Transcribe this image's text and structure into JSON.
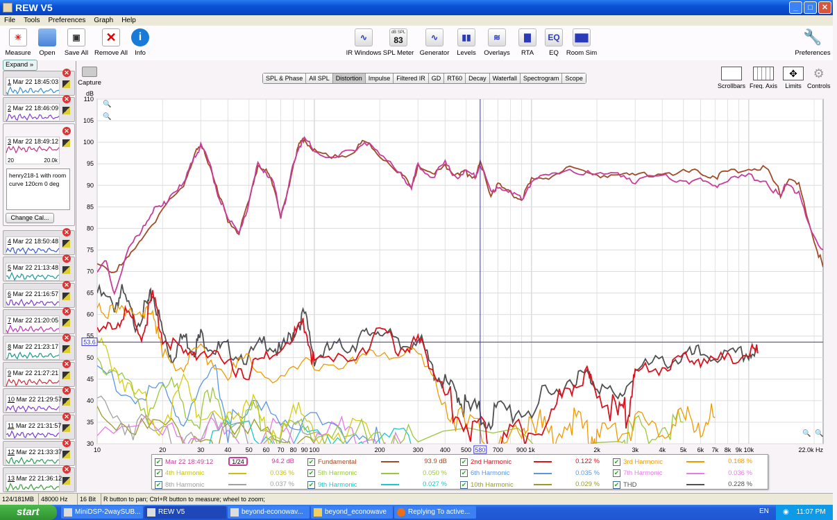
{
  "window": {
    "title": "REW V5",
    "min": "_",
    "max": "□",
    "close": "✕"
  },
  "menu": [
    "File",
    "Tools",
    "Preferences",
    "Graph",
    "Help"
  ],
  "toolbar_left": [
    {
      "label": "Measure",
      "icon": "measure-icon"
    },
    {
      "label": "Open",
      "icon": "folder-icon"
    },
    {
      "label": "Save All",
      "icon": "save-icon"
    },
    {
      "label": "Remove All",
      "icon": "remove-all-icon"
    },
    {
      "label": "Info",
      "icon": "info-icon"
    }
  ],
  "toolbar_center": [
    {
      "label": "IR Windows",
      "icon": "ir-windows-icon",
      "glyph": "∿"
    },
    {
      "label": "SPL Meter",
      "icon": "spl-meter-icon",
      "glyph": "83",
      "sub": "dB SPL"
    },
    {
      "label": "Generator",
      "icon": "generator-icon",
      "glyph": "∿"
    },
    {
      "label": "Levels",
      "icon": "levels-icon",
      "glyph": "▮▮"
    },
    {
      "label": "Overlays",
      "icon": "overlays-icon",
      "glyph": "≋"
    },
    {
      "label": "RTA",
      "icon": "rta-icon",
      "glyph": "▇"
    },
    {
      "label": "EQ",
      "icon": "eq-icon",
      "glyph": "EQ"
    },
    {
      "label": "Room Sim",
      "icon": "room-sim-icon",
      "glyph": "▇▇"
    }
  ],
  "preferences": "Preferences",
  "sidebar": {
    "expand": "Expand",
    "notes": "henry218-1 with room curve 120cm 0 deg",
    "change_cal": "Change Cal...",
    "axis_lo": "20",
    "axis_hi": "20.0k",
    "items": [
      {
        "n": "1",
        "date": "Mar 22 18:45:03",
        "color": "#3a8ed0"
      },
      {
        "n": "2",
        "date": "Mar 22 18:46:09",
        "color": "#8a3ad0"
      },
      {
        "n": "3",
        "date": "Mar 22 18:49:12",
        "color": "#c0308a"
      },
      {
        "n": "4",
        "date": "Mar 22 18:50:48",
        "color": "#3a5ad0"
      },
      {
        "n": "5",
        "date": "Mar 22 21:13:48",
        "color": "#1a9a9a"
      },
      {
        "n": "6",
        "date": "Mar 22 21:16:57",
        "color": "#7a3ad0"
      },
      {
        "n": "7",
        "date": "Mar 22 21:20:05",
        "color": "#c030c0"
      },
      {
        "n": "8",
        "date": "Mar 22 21:23:17",
        "color": "#1a9a8a"
      },
      {
        "n": "9",
        "date": "Mar 22 21:27:21",
        "color": "#d02a3a"
      },
      {
        "n": "10",
        "date": "Mar 22 21:29:57",
        "color": "#8a3ad0"
      },
      {
        "n": "11",
        "date": "Mar 22 21:31:57",
        "color": "#7a3ad0"
      },
      {
        "n": "12",
        "date": "Mar 22 21:33:37",
        "color": "#2aa05a"
      },
      {
        "n": "13",
        "date": "Mar 22 21:36:12",
        "color": "#3aa03a"
      }
    ]
  },
  "capture": "Capture",
  "tabs": [
    "SPL & Phase",
    "All SPL",
    "Distortion",
    "Impulse",
    "Filtered IR",
    "GD",
    "RT60",
    "Decay",
    "Waterfall",
    "Spectrogram",
    "Scope"
  ],
  "active_tab": "Distortion",
  "right_tools": [
    "Scrollbars",
    "Freq. Axis",
    "Limits",
    "Controls"
  ],
  "chart_data": {
    "type": "line",
    "ylabel": "dB",
    "xlabel": "Hz",
    "xscale": "log",
    "xlim": [
      10,
      22000
    ],
    "ylim": [
      30,
      110
    ],
    "yticks": [
      30,
      35,
      40,
      45,
      50,
      55,
      60,
      65,
      70,
      75,
      80,
      85,
      90,
      95,
      100,
      105,
      110
    ],
    "xticks": [
      {
        "v": 10,
        "t": "10"
      },
      {
        "v": 20,
        "t": "20"
      },
      {
        "v": 30,
        "t": "30"
      },
      {
        "v": 40,
        "t": "40"
      },
      {
        "v": 50,
        "t": "50"
      },
      {
        "v": 60,
        "t": "60"
      },
      {
        "v": 70,
        "t": "70"
      },
      {
        "v": 80,
        "t": "80"
      },
      {
        "v": 90,
        "t": "90"
      },
      {
        "v": 100,
        "t": "100"
      },
      {
        "v": 200,
        "t": "200"
      },
      {
        "v": 300,
        "t": "300"
      },
      {
        "v": 400,
        "t": "400"
      },
      {
        "v": 500,
        "t": "500"
      },
      {
        "v": 700,
        "t": "700"
      },
      {
        "v": 900,
        "t": "900"
      },
      {
        "v": 1000,
        "t": "1k"
      },
      {
        "v": 2000,
        "t": "2k"
      },
      {
        "v": 3000,
        "t": "3k"
      },
      {
        "v": 4000,
        "t": "4k"
      },
      {
        "v": 5000,
        "t": "5k"
      },
      {
        "v": 6000,
        "t": "6k"
      },
      {
        "v": 7000,
        "t": "7k"
      },
      {
        "v": 8000,
        "t": "8k"
      },
      {
        "v": 9000,
        "t": "9k"
      },
      {
        "v": 10000,
        "t": "10k"
      },
      {
        "v": 22000,
        "t": "22.0k Hz"
      }
    ],
    "cursor": {
      "x": 580,
      "x_label": "580",
      "y": 53.6,
      "y_label": "53.6"
    },
    "series": [
      {
        "name": "Mar 22 18:49:12",
        "color": "#c83c9a",
        "x": [
          10,
          11,
          12,
          14,
          16,
          18,
          20,
          22,
          25,
          28,
          30,
          33,
          36,
          40,
          45,
          50,
          55,
          60,
          65,
          70,
          75,
          80,
          85,
          90,
          100,
          120,
          150,
          170,
          200,
          250,
          280,
          300,
          350,
          400,
          450,
          500,
          550,
          580,
          650,
          700,
          800,
          900,
          1000,
          1200,
          1500,
          2000,
          2500,
          3000,
          4000,
          5000,
          6000,
          7000,
          8000,
          10000,
          12000,
          14000,
          15000,
          17000,
          19000,
          22000
        ],
        "y": [
          70,
          72,
          65,
          75,
          80,
          84,
          85,
          88,
          90,
          97,
          99,
          95,
          88,
          82,
          79,
          86,
          95,
          93,
          90,
          83,
          88,
          95,
          99,
          101,
          98,
          96,
          98,
          100,
          97,
          93,
          89,
          95,
          92,
          95,
          92,
          93,
          92,
          95,
          88,
          90,
          88,
          87,
          91,
          92,
          94,
          92,
          93,
          91,
          92,
          91,
          91,
          90,
          91,
          92,
          91,
          87,
          91,
          88,
          80,
          75
        ]
      },
      {
        "name": "Fundamental",
        "color": "#a04a28",
        "x": [
          10,
          12,
          14,
          16,
          20,
          25,
          28,
          30,
          33,
          36,
          40,
          45,
          50,
          55,
          60,
          65,
          70,
          75,
          80,
          85,
          90,
          100,
          120,
          150,
          170,
          200,
          250,
          280,
          300,
          350,
          400,
          450,
          500,
          550,
          580,
          650,
          700,
          800,
          900,
          1000,
          1200,
          1500,
          2000,
          2500,
          3000,
          4000,
          5000,
          6000,
          7000,
          8000,
          10000,
          12000,
          14000,
          15000,
          17000,
          20000,
          22000
        ],
        "y": [
          72,
          70,
          73,
          78,
          84,
          90,
          97,
          99,
          95,
          88,
          82,
          79,
          86,
          95,
          93,
          90,
          83,
          88,
          95,
          99,
          101,
          98,
          96,
          98,
          100,
          97,
          93,
          89,
          95,
          92,
          95,
          92,
          93,
          92,
          95,
          88,
          90,
          88,
          87,
          91,
          92,
          94,
          92,
          93,
          92,
          93,
          93,
          93,
          92,
          93,
          94,
          94,
          88,
          91,
          90,
          77,
          71
        ]
      },
      {
        "name": "2nd Harmonic",
        "color": "#d8141e",
        "x": [
          10,
          12,
          14,
          16,
          18,
          20,
          25,
          30,
          40,
          50,
          60,
          80,
          90,
          100,
          150,
          200,
          250,
          300,
          350,
          400,
          500,
          600,
          700,
          900,
          1200,
          1500,
          1800,
          2000,
          2500,
          2800,
          3000,
          4000,
          5000,
          6000,
          8000,
          10000,
          11000
        ],
        "y": [
          55,
          58,
          60,
          55,
          64,
          55,
          50,
          52,
          48,
          47,
          50,
          55,
          58,
          48,
          50,
          56,
          52,
          54,
          48,
          41,
          35,
          32,
          30,
          33,
          36,
          43,
          46,
          42,
          36,
          38,
          46,
          48,
          49,
          50,
          49,
          51,
          51
        ]
      },
      {
        "name": "3rd Harmonic",
        "color": "#f09a00",
        "x": [
          10,
          12,
          14,
          16,
          18,
          20,
          25,
          30,
          40,
          50,
          70,
          100,
          150,
          200,
          300,
          400,
          500,
          700,
          900,
          1000,
          1200,
          1500,
          1800,
          2000,
          2500,
          3000,
          4000,
          5000,
          6000,
          7000
        ],
        "y": [
          63,
          60,
          62,
          58,
          62,
          50,
          48,
          52,
          46,
          50,
          45,
          49,
          48,
          52,
          50,
          40,
          33,
          32,
          31,
          38,
          31,
          35,
          33,
          31,
          33,
          34,
          34,
          35,
          35,
          36
        ]
      },
      {
        "name": "4th Harmonic",
        "color": "#d4cc10",
        "x": [
          10,
          12,
          15,
          20,
          25,
          30,
          40,
          50,
          60,
          80,
          100,
          150,
          200
        ],
        "y": [
          54,
          48,
          40,
          35,
          45,
          38,
          35,
          41,
          32,
          37,
          34,
          32,
          30
        ]
      },
      {
        "name": "5th Harmonic",
        "color": "#9ac83a",
        "x": [
          10,
          13,
          17,
          22,
          28,
          35,
          45,
          55,
          70,
          90,
          120,
          200,
          300,
          2500,
          3000,
          4000,
          5000
        ],
        "y": [
          50,
          45,
          38,
          44,
          36,
          40,
          33,
          37,
          31,
          35,
          31,
          33,
          30,
          31,
          33,
          34,
          35
        ]
      },
      {
        "name": "6th Harmonic",
        "color": "#5a96e8",
        "x": [
          10,
          15,
          20,
          25,
          35,
          40,
          60,
          90,
          150,
          200
        ],
        "y": [
          48,
          40,
          43,
          35,
          47,
          34,
          38,
          35,
          33,
          30
        ]
      },
      {
        "name": "7th Harmonic",
        "color": "#e87ae8",
        "x": [
          10,
          20,
          30,
          40,
          60,
          80,
          120,
          160,
          250
        ],
        "y": [
          35,
          32,
          34,
          30,
          33,
          31,
          34,
          32,
          30
        ]
      },
      {
        "name": "8th Harmonic",
        "color": "#a0a0a0",
        "x": [
          10,
          14,
          20,
          30,
          50,
          80,
          120
        ],
        "y": [
          40,
          35,
          32,
          34,
          31,
          33,
          30
        ]
      },
      {
        "name": "9th Harmonic",
        "color": "#18c8d0",
        "x": [
          30,
          50,
          80,
          120,
          200,
          300
        ],
        "y": [
          31,
          33,
          30,
          32,
          31,
          30
        ]
      },
      {
        "name": "10th Harmonic",
        "color": "#9a9a28",
        "x": [
          10,
          15,
          25,
          40,
          70,
          100
        ],
        "y": [
          38,
          34,
          32,
          31,
          33,
          30
        ]
      },
      {
        "name": "THD",
        "color": "#505050",
        "x": [
          10,
          12,
          13,
          15,
          17,
          18,
          20,
          22,
          25,
          28,
          30,
          35,
          40,
          50,
          60,
          70,
          80,
          90,
          100,
          120,
          150,
          170,
          200,
          250,
          300,
          350,
          400,
          450,
          500,
          600,
          700,
          900,
          1200,
          1500,
          1800,
          2000,
          2500,
          3000,
          4000,
          5000,
          6000,
          8000,
          10000,
          11000
        ],
        "y": [
          65,
          62,
          65,
          58,
          62,
          65,
          56,
          50,
          55,
          52,
          55,
          52,
          52,
          50,
          54,
          51,
          56,
          60,
          50,
          52,
          53,
          55,
          57,
          52,
          55,
          47,
          44,
          42,
          38,
          36,
          37,
          38,
          40,
          45,
          46,
          44,
          40,
          47,
          49,
          50,
          51,
          50,
          51,
          51
        ]
      }
    ]
  },
  "legend": [
    {
      "label": "Mar 22 18:49:12",
      "color": "#c83c9a",
      "value": "94.2 dB",
      "smoothing": "1/24"
    },
    {
      "label": "Fundamental",
      "color": "#a04a28",
      "value": "93.9 dB"
    },
    {
      "label": "2nd Harmonic",
      "color": "#d8141e",
      "value": "0.122 %"
    },
    {
      "label": "3rd Harmonic",
      "color": "#f09a00",
      "value": "0.168 %"
    },
    {
      "label": "4th Harmonic",
      "color": "#c8c010",
      "value": "0.036 %"
    },
    {
      "label": "5th Harmonic",
      "color": "#9ac83a",
      "value": "0.050 %"
    },
    {
      "label": "6th Harmonic",
      "color": "#5a96e8",
      "value": "0.035 %"
    },
    {
      "label": "7th Harmonic",
      "color": "#e87ae8",
      "value": "0.036 %"
    },
    {
      "label": "8th Harmonic",
      "color": "#a0a0a0",
      "value": "0.037 %"
    },
    {
      "label": "9th Harmonic",
      "color": "#18c8d0",
      "value": "0.027 %"
    },
    {
      "label": "10th Harmonic",
      "color": "#9a9a28",
      "value": "0.029 %"
    },
    {
      "label": "THD",
      "color": "#505050",
      "value": "0.228 %"
    }
  ],
  "status": {
    "memory": "124/181MB",
    "rate": "48000 Hz",
    "bits": "16 Bit",
    "hint": "R button to pan; Ctrl+R button to measure; wheel to zoom;"
  },
  "taskbar": {
    "start": "start",
    "tasks": [
      "MiniDSP-2waySUB...",
      "REW V5",
      "beyond-econowav...",
      "beyond_econowave",
      "Replying To active..."
    ],
    "lang": "EN",
    "time": "11:07 PM"
  }
}
